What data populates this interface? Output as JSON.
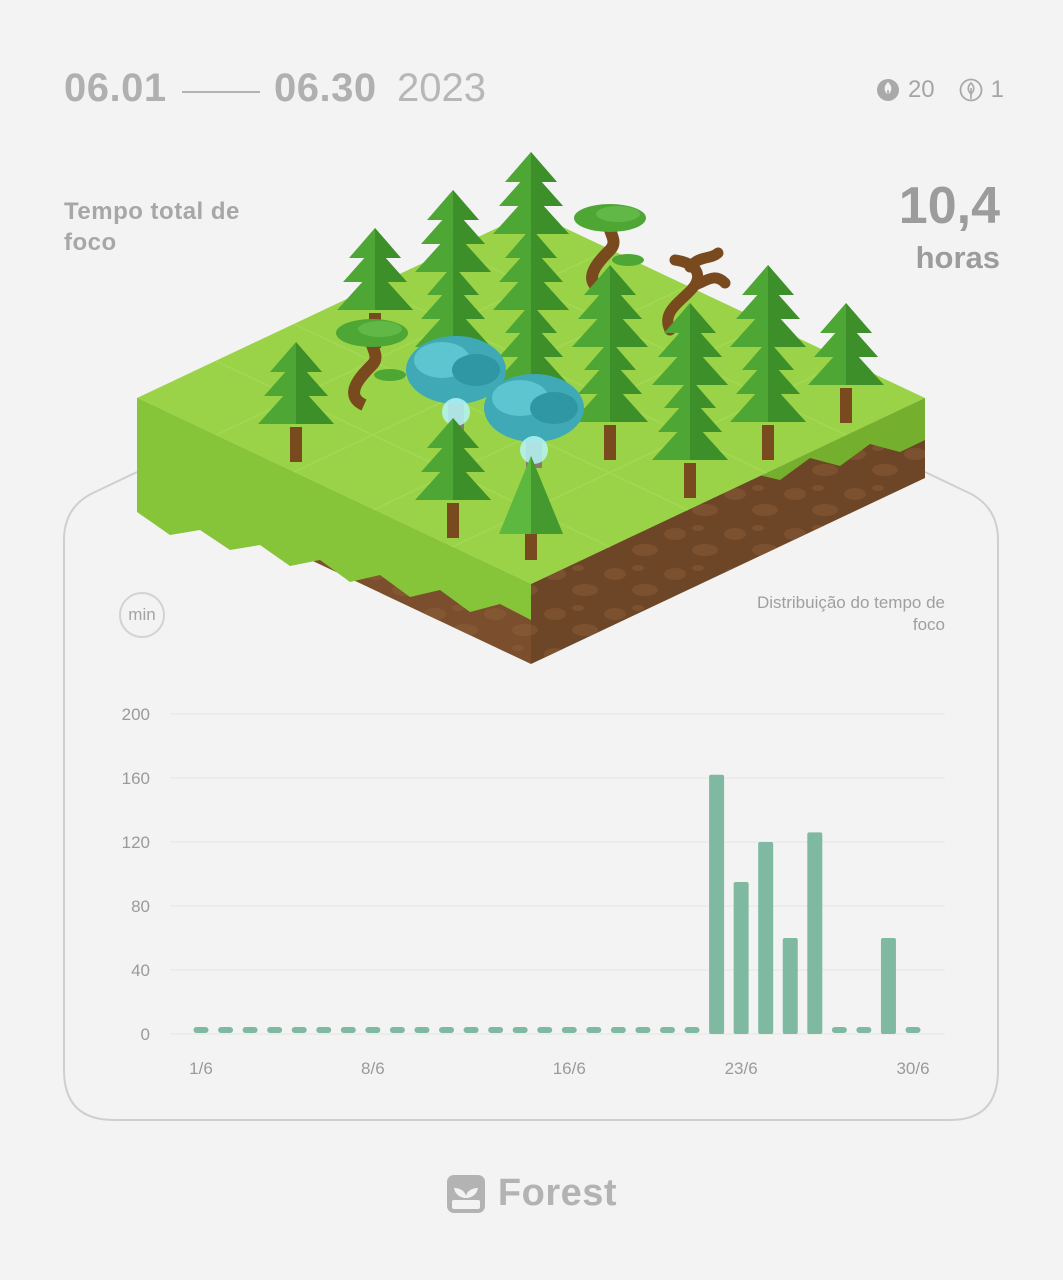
{
  "header": {
    "start_date": "06.01",
    "end_date": "06.30",
    "year": "2023",
    "healthy_count": "20",
    "dead_count": "1"
  },
  "summary": {
    "label": "Tempo total de foco",
    "value": "10,4",
    "unit": "horas"
  },
  "chart_unit": "min",
  "chart_subtitle": "Distribuição do tempo de foco",
  "brand": {
    "name": "Forest"
  },
  "colors": {
    "bar": "#7fb9a2",
    "axis_text": "#9a9a9a",
    "grid": "#e5e5e5",
    "grass": "#8ccf3c",
    "soil": "#7b4f2d"
  },
  "chart_data": {
    "type": "bar",
    "title": "Distribuição do tempo de foco",
    "xlabel": "",
    "ylabel": "min",
    "ylim": [
      0,
      200
    ],
    "yticks": [
      0,
      40,
      80,
      120,
      160,
      200
    ],
    "xticks": [
      {
        "day": 1,
        "label": "1/6"
      },
      {
        "day": 8,
        "label": "8/6"
      },
      {
        "day": 16,
        "label": "16/6"
      },
      {
        "day": 23,
        "label": "23/6"
      },
      {
        "day": 30,
        "label": "30/6"
      }
    ],
    "grid": true,
    "days": [
      1,
      2,
      3,
      4,
      5,
      6,
      7,
      8,
      9,
      10,
      11,
      12,
      13,
      14,
      15,
      16,
      17,
      18,
      19,
      20,
      21,
      22,
      23,
      24,
      25,
      26,
      27,
      28,
      29,
      30
    ],
    "values": [
      0,
      0,
      0,
      0,
      0,
      0,
      0,
      0,
      0,
      0,
      0,
      0,
      0,
      0,
      0,
      0,
      0,
      0,
      0,
      0,
      0,
      162,
      95,
      120,
      60,
      126,
      0,
      0,
      60,
      0
    ]
  }
}
